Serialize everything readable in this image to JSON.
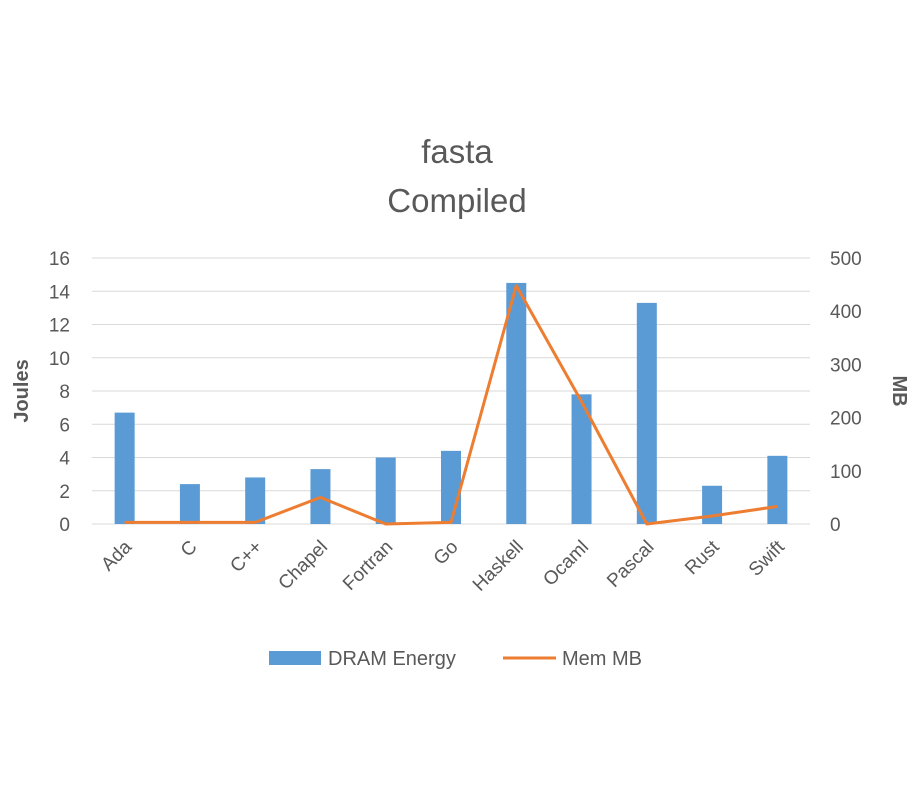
{
  "chart_data": {
    "type": "bar+line",
    "title": [
      "fasta",
      "Compiled"
    ],
    "categories": [
      "Ada",
      "C",
      "C++",
      "Chapel",
      "Fortran",
      "Go",
      "Haskell",
      "Ocaml",
      "Pascal",
      "Rust",
      "Swift"
    ],
    "series": [
      {
        "name": "DRAM Energy",
        "type": "bar",
        "axis": "left",
        "color": "#5B9BD5",
        "values": [
          6.7,
          2.4,
          2.8,
          3.3,
          4.0,
          4.4,
          14.5,
          7.8,
          13.3,
          2.3,
          4.1
        ]
      },
      {
        "name": "Mem MB",
        "type": "line",
        "axis": "right",
        "color": "#ED7D31",
        "values": [
          3,
          3,
          3,
          50,
          0,
          3,
          448,
          230,
          0,
          15,
          33
        ]
      }
    ],
    "y_left": {
      "label": "Joules",
      "ylim": [
        0,
        16
      ],
      "ticks": [
        "0",
        "2",
        "4",
        "6",
        "8",
        "10",
        "12",
        "14",
        "16"
      ]
    },
    "y_right": {
      "label": "MB",
      "ylim": [
        0,
        500
      ],
      "ticks": [
        "0",
        "100",
        "200",
        "300",
        "400",
        "500"
      ]
    },
    "grid": true,
    "legend_position": "bottom",
    "gridline_color": "#D9D9D9"
  }
}
